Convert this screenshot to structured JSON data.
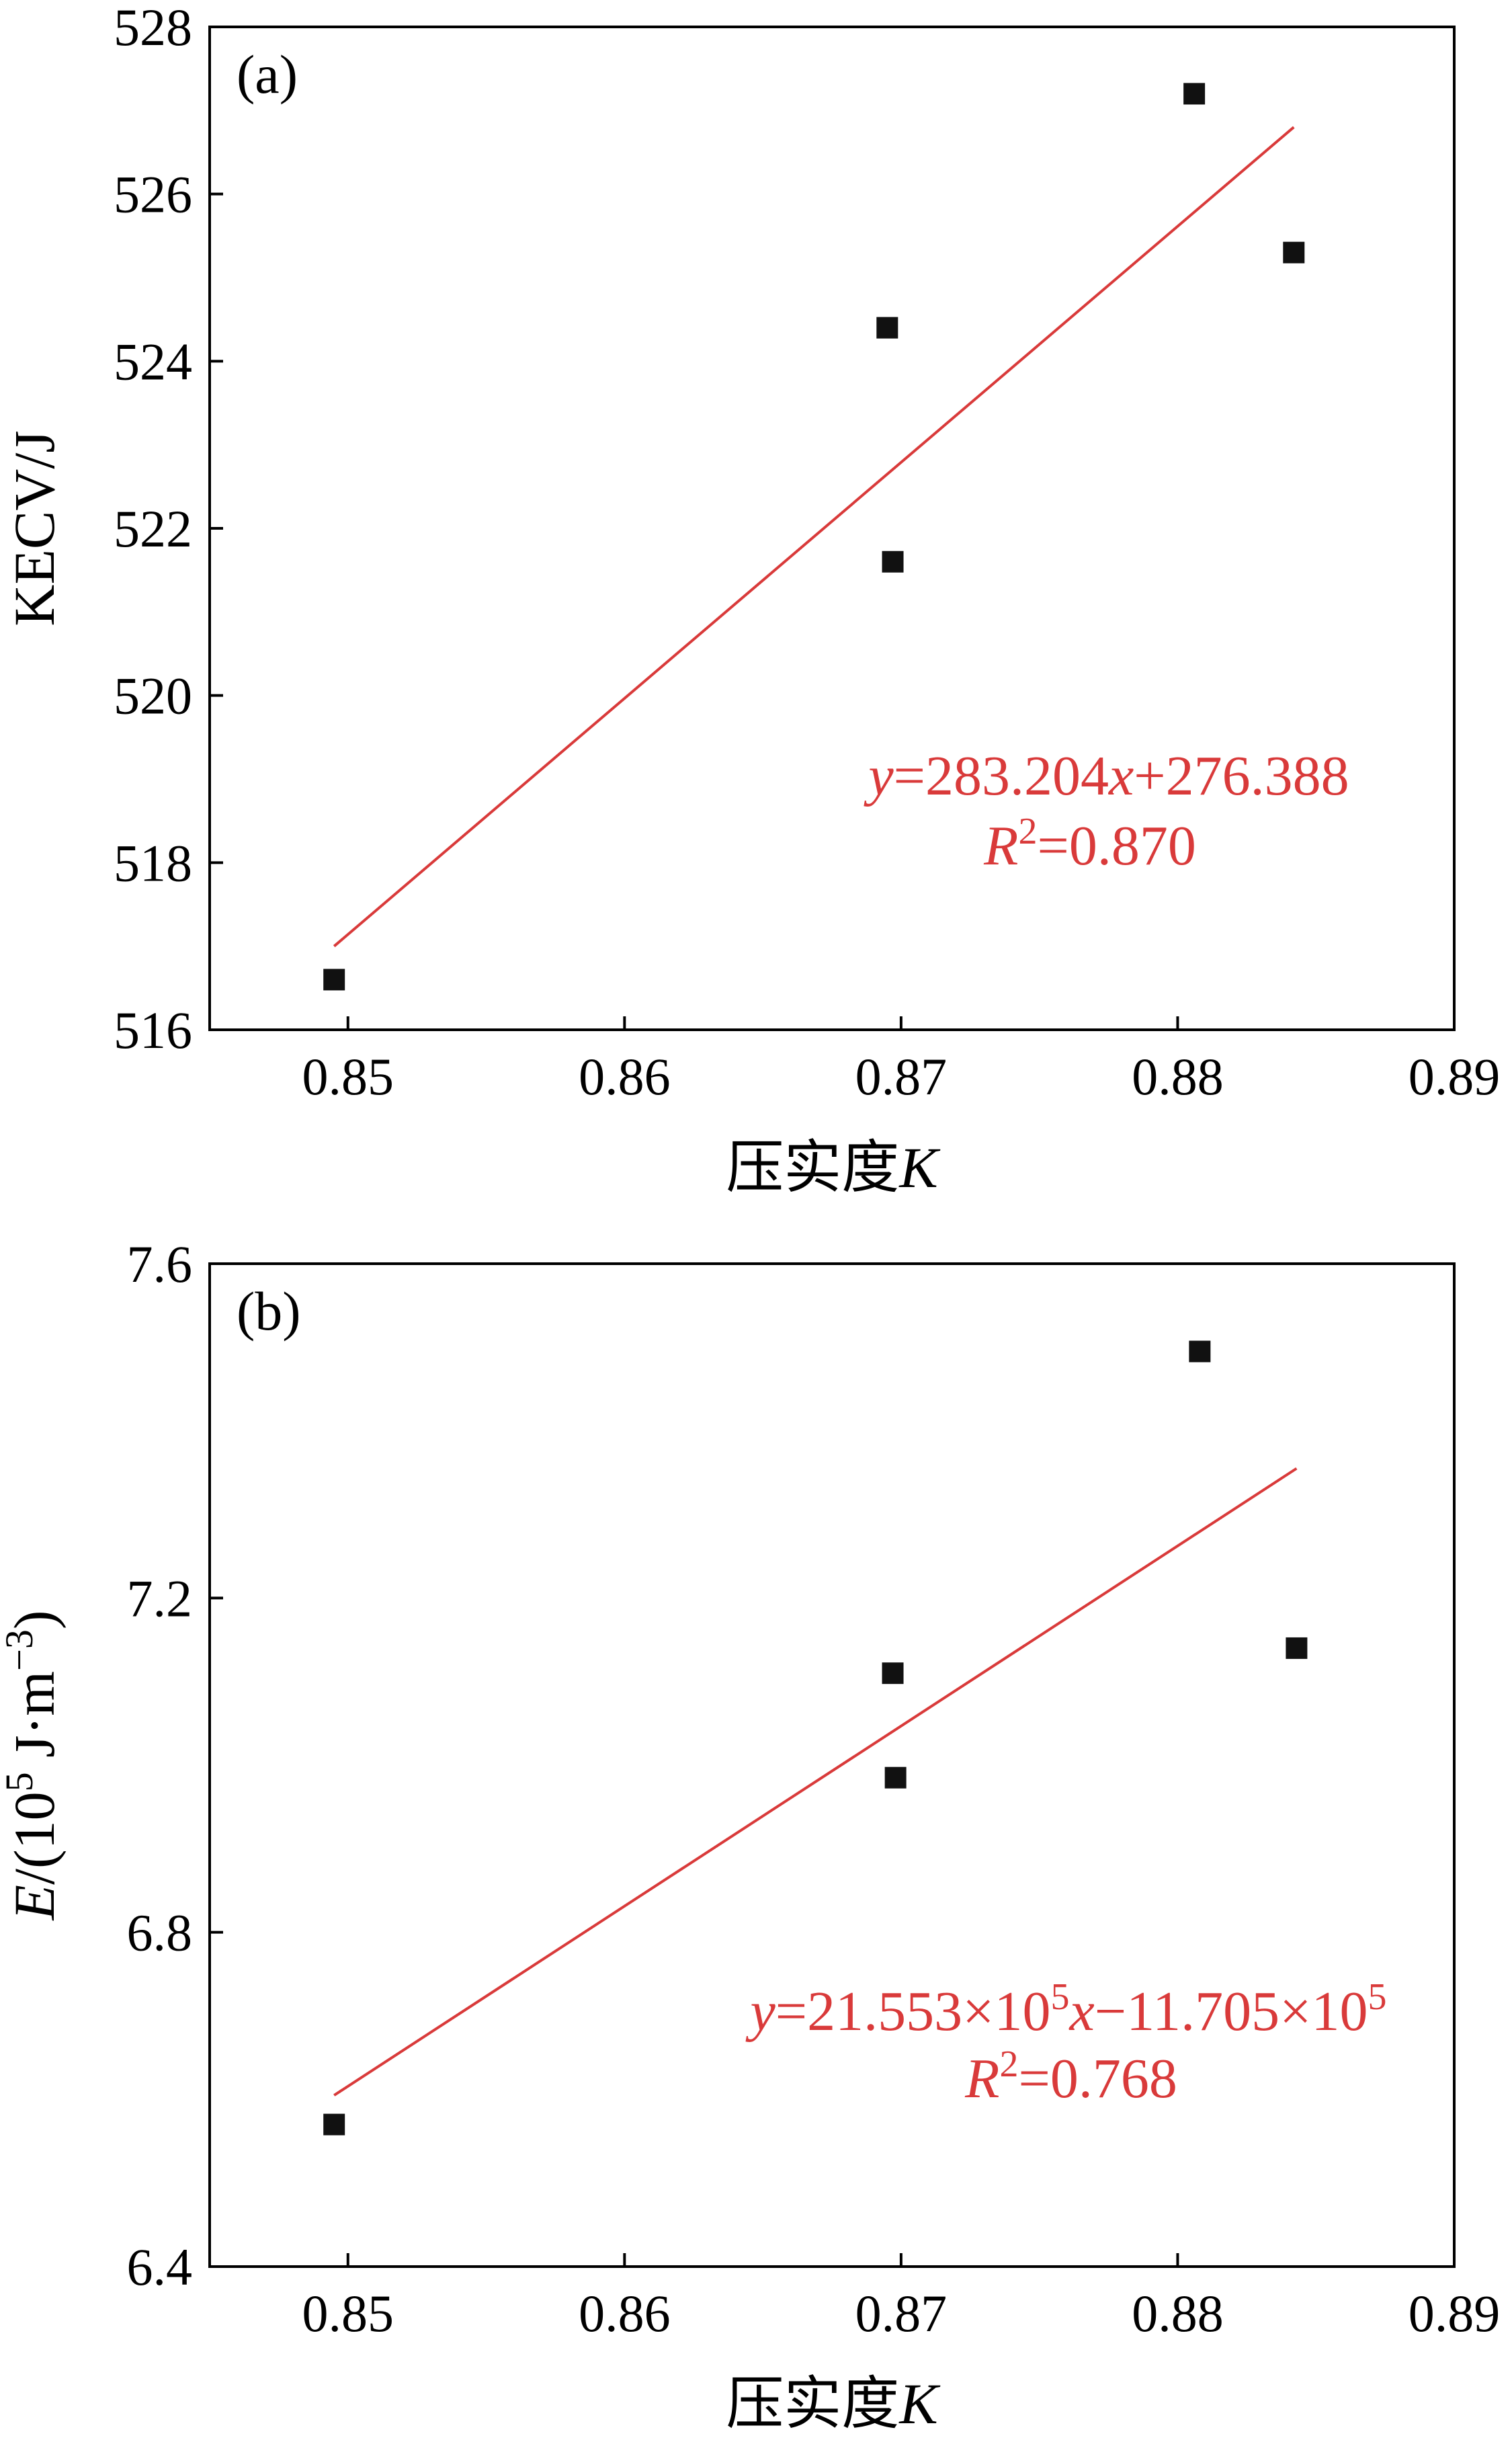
{
  "colors": {
    "fit": "#d93a3a",
    "points": "#111111",
    "axes": "#000000"
  },
  "chart_data": [
    {
      "type": "scatter",
      "panel": "(a)",
      "xlabel": {
        "text": "压实度",
        "var": "K"
      },
      "ylabel": "KECV/J",
      "xlim": [
        0.845,
        0.89
      ],
      "ylim": [
        516,
        528
      ],
      "xticks": [
        0.85,
        0.86,
        0.87,
        0.88,
        0.89
      ],
      "xtick_labels": [
        "0.85",
        "0.86",
        "0.87",
        "0.88",
        "0.89"
      ],
      "yticks": [
        516,
        518,
        520,
        522,
        524,
        526,
        528
      ],
      "ytick_labels": [
        "516",
        "518",
        "520",
        "522",
        "524",
        "526",
        "528"
      ],
      "points": [
        {
          "x": 0.8495,
          "y": 516.6
        },
        {
          "x": 0.8695,
          "y": 524.4
        },
        {
          "x": 0.8697,
          "y": 521.6
        },
        {
          "x": 0.8806,
          "y": 527.2
        },
        {
          "x": 0.8842,
          "y": 525.3
        }
      ],
      "fit": {
        "x": [
          0.8495,
          0.8842
        ],
        "y": [
          517.0,
          526.8
        ]
      },
      "equation": {
        "y_var": "y",
        "eq": "=283.204",
        "x_var": "x",
        "rest": "+276.388"
      },
      "r2": {
        "var": "R",
        "sup": "2",
        "value": "=0.870"
      }
    },
    {
      "type": "scatter",
      "panel": "(b)",
      "xlabel": {
        "text": "压实度",
        "var": "K"
      },
      "ylabel": {
        "var": "E",
        "text1": "/(10",
        "sup1": "5",
        "text2": " J·m",
        "sup2": "−3",
        "text3": ")"
      },
      "xlim": [
        0.845,
        0.89
      ],
      "ylim": [
        6.4,
        7.6
      ],
      "xticks": [
        0.85,
        0.86,
        0.87,
        0.88,
        0.89
      ],
      "xtick_labels": [
        "0.85",
        "0.86",
        "0.87",
        "0.88",
        "0.89"
      ],
      "yticks": [
        6.4,
        6.8,
        7.2,
        7.6
      ],
      "ytick_labels": [
        "6.4",
        "6.8",
        "7.2",
        "7.6"
      ],
      "points": [
        {
          "x": 0.8495,
          "y": 6.57
        },
        {
          "x": 0.8697,
          "y": 7.11
        },
        {
          "x": 0.8698,
          "y": 6.985
        },
        {
          "x": 0.8808,
          "y": 7.495
        },
        {
          "x": 0.8843,
          "y": 7.14
        }
      ],
      "fit": {
        "x": [
          0.8495,
          0.8843
        ],
        "y": [
          6.605,
          7.355
        ]
      },
      "equation": {
        "y_var": "y",
        "p1": "=21.553×10",
        "s1": "5",
        "x_var": "x",
        "p2": "−11.705×10",
        "s2": "5"
      },
      "r2": {
        "var": "R",
        "sup": "2",
        "value": "=0.768"
      }
    }
  ]
}
